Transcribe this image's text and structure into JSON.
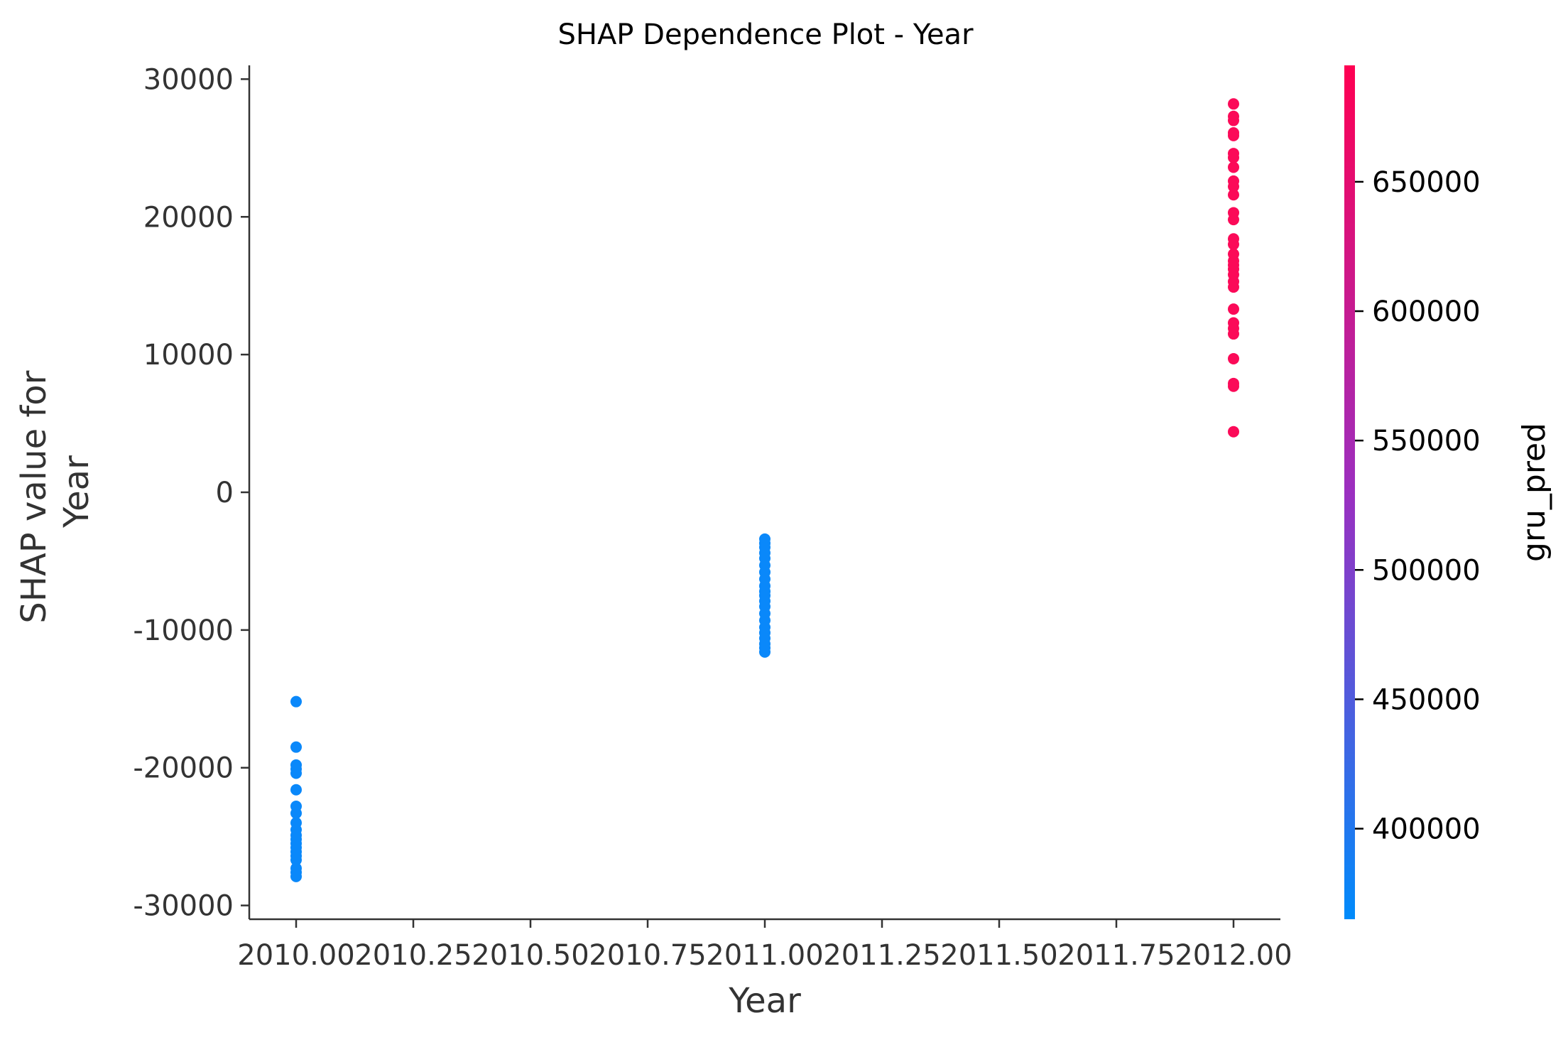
{
  "chart_data": {
    "type": "scatter",
    "title": "SHAP Dependence Plot - Year",
    "xlabel": "Year",
    "ylabel_lines": [
      "SHAP value for",
      "Year"
    ],
    "xlim": [
      2009.9,
      2012.1
    ],
    "ylim": [
      -31000,
      31000
    ],
    "x_ticks": [
      2010.0,
      2010.25,
      2010.5,
      2010.75,
      2011.0,
      2011.25,
      2011.5,
      2011.75,
      2012.0
    ],
    "x_tick_labels": [
      "2010.00",
      "2010.25",
      "2010.50",
      "2010.75",
      "2011.00",
      "2011.25",
      "2011.50",
      "2011.75",
      "2012.00"
    ],
    "y_ticks": [
      30000,
      20000,
      10000,
      0,
      -10000,
      -20000,
      -30000
    ],
    "y_tick_labels": [
      "30000",
      "20000",
      "10000",
      "0",
      "-10000",
      "-20000",
      "-30000"
    ],
    "grid": false,
    "colorbar": {
      "label": "gru_pred",
      "range": [
        365000,
        695000
      ],
      "ticks": [
        400000,
        450000,
        500000,
        550000,
        600000,
        650000
      ],
      "tick_labels": [
        "400000",
        "450000",
        "500000",
        "550000",
        "600000",
        "650000"
      ],
      "color_low": "#008bfb",
      "color_mid": "#9b2fc0",
      "color_high": "#ff0052"
    },
    "series": [
      {
        "x": 2010.0,
        "color": "#0a88fa",
        "values": [
          -15200,
          -18500,
          -19800,
          -20100,
          -20400,
          -21600,
          -22800,
          -23300,
          -24000,
          -24500,
          -24900,
          -25200,
          -25500,
          -25800,
          -26100,
          -26400,
          -26700,
          -27300,
          -27600,
          -27900
        ]
      },
      {
        "x": 2011.0,
        "color": "#0a88fa",
        "values": [
          -3400,
          -3700,
          -4000,
          -4400,
          -4800,
          -5300,
          -5800,
          -6300,
          -6800,
          -7200,
          -7500,
          -7900,
          -8300,
          -8800,
          -9300,
          -9800,
          -10200,
          -10600,
          -11000,
          -11300,
          -11600
        ]
      },
      {
        "x": 2012.0,
        "color": "#fb0a58",
        "values": [
          28200,
          27300,
          27000,
          26100,
          25900,
          24600,
          24300,
          23600,
          22600,
          22200,
          21600,
          20300,
          19800,
          18400,
          18000,
          17300,
          16800,
          16500,
          16200,
          15800,
          15300,
          14900,
          13300,
          12300,
          11900,
          11500,
          9700,
          7900,
          7700,
          4400
        ]
      }
    ]
  }
}
